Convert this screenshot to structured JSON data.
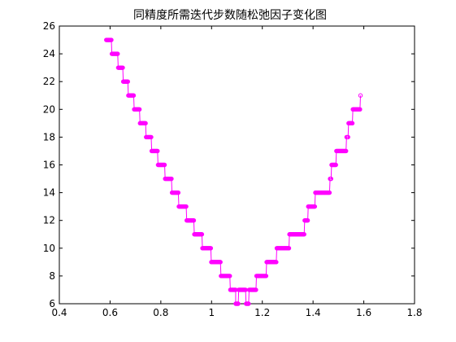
{
  "chart_data": {
    "type": "line",
    "title": "同精度所需迭代步数随松弛因子变化图",
    "xlabel": "",
    "ylabel": "",
    "xlim": [
      0.4,
      1.8
    ],
    "ylim": [
      6,
      26
    ],
    "xticks": [
      0.4,
      0.6,
      0.8,
      1,
      1.2,
      1.4,
      1.6,
      1.8
    ],
    "yticks": [
      6,
      8,
      10,
      12,
      14,
      16,
      18,
      20,
      22,
      24,
      26
    ],
    "grid": false,
    "line_color": "#ff00ff",
    "marker": "circle",
    "steps": [
      {
        "x0": 0.585,
        "x1": 0.605,
        "y": 25
      },
      {
        "x0": 0.607,
        "x1": 0.63,
        "y": 24
      },
      {
        "x0": 0.632,
        "x1": 0.65,
        "y": 23
      },
      {
        "x0": 0.652,
        "x1": 0.67,
        "y": 22
      },
      {
        "x0": 0.672,
        "x1": 0.693,
        "y": 21
      },
      {
        "x0": 0.695,
        "x1": 0.716,
        "y": 20
      },
      {
        "x0": 0.718,
        "x1": 0.74,
        "y": 19
      },
      {
        "x0": 0.742,
        "x1": 0.762,
        "y": 18
      },
      {
        "x0": 0.764,
        "x1": 0.787,
        "y": 17
      },
      {
        "x0": 0.789,
        "x1": 0.815,
        "y": 16
      },
      {
        "x0": 0.817,
        "x1": 0.842,
        "y": 15
      },
      {
        "x0": 0.844,
        "x1": 0.869,
        "y": 14
      },
      {
        "x0": 0.871,
        "x1": 0.9,
        "y": 13
      },
      {
        "x0": 0.902,
        "x1": 0.93,
        "y": 12
      },
      {
        "x0": 0.932,
        "x1": 0.962,
        "y": 11
      },
      {
        "x0": 0.964,
        "x1": 0.997,
        "y": 10
      },
      {
        "x0": 0.999,
        "x1": 1.035,
        "y": 9
      },
      {
        "x0": 1.037,
        "x1": 1.072,
        "y": 8
      },
      {
        "x0": 1.074,
        "x1": 1.095,
        "y": 7
      },
      {
        "x0": 1.095,
        "x1": 1.105,
        "y": 6
      },
      {
        "x0": 1.107,
        "x1": 1.134,
        "y": 7
      },
      {
        "x0": 1.136,
        "x1": 1.146,
        "y": 6
      },
      {
        "x0": 1.148,
        "x1": 1.175,
        "y": 7
      },
      {
        "x0": 1.177,
        "x1": 1.215,
        "y": 8
      },
      {
        "x0": 1.217,
        "x1": 1.255,
        "y": 9
      },
      {
        "x0": 1.257,
        "x1": 1.305,
        "y": 10
      },
      {
        "x0": 1.307,
        "x1": 1.365,
        "y": 11
      },
      {
        "x0": 1.367,
        "x1": 1.379,
        "y": 12
      },
      {
        "x0": 1.381,
        "x1": 1.407,
        "y": 13
      },
      {
        "x0": 1.409,
        "x1": 1.465,
        "y": 14
      },
      {
        "x0": 1.467,
        "x1": 1.471,
        "y": 15
      },
      {
        "x0": 1.473,
        "x1": 1.49,
        "y": 16
      },
      {
        "x0": 1.492,
        "x1": 1.53,
        "y": 17
      },
      {
        "x0": 1.532,
        "x1": 1.538,
        "y": 18
      },
      {
        "x0": 1.54,
        "x1": 1.555,
        "y": 19
      },
      {
        "x0": 1.557,
        "x1": 1.585,
        "y": 20
      },
      {
        "x0": 1.587,
        "x1": 1.587,
        "y": 21
      }
    ]
  }
}
